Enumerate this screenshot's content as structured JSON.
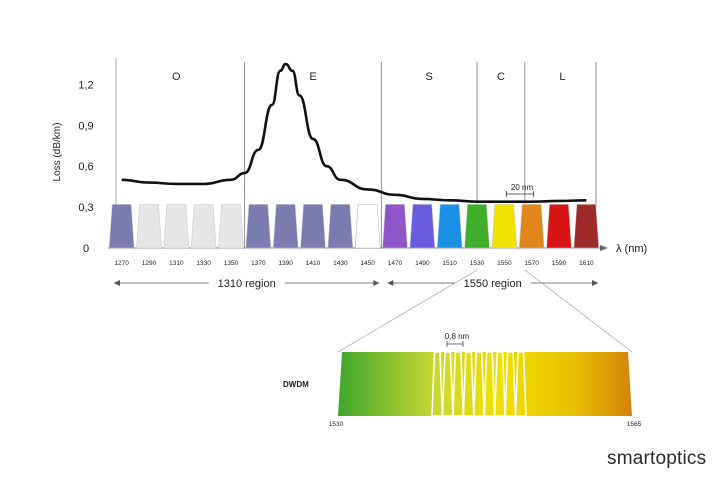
{
  "chart_data": {
    "type": "area",
    "ylabel": "Loss (dB/km)",
    "xlabel": "λ (nm)",
    "y_ticks": [
      "0",
      "0,3",
      "0,6",
      "0,9",
      "1,2"
    ],
    "ylim": [
      0,
      1.35
    ],
    "xlim": [
      1260,
      1620
    ],
    "bands": [
      {
        "name": "O",
        "start": 1260,
        "end": 1360
      },
      {
        "name": "E",
        "start": 1360,
        "end": 1460
      },
      {
        "name": "S",
        "start": 1460,
        "end": 1530
      },
      {
        "name": "C",
        "start": 1530,
        "end": 1565
      },
      {
        "name": "L",
        "start": 1565,
        "end": 1620
      }
    ],
    "cwdm_channels": [
      {
        "label": "1270",
        "center": 1270,
        "color": "#7b7bb0"
      },
      {
        "label": "1290",
        "center": 1290,
        "color": "#e6e6e6"
      },
      {
        "label": "1310",
        "center": 1310,
        "color": "#e6e6e6"
      },
      {
        "label": "1330",
        "center": 1330,
        "color": "#e6e6e6"
      },
      {
        "label": "1350",
        "center": 1350,
        "color": "#e6e6e6"
      },
      {
        "label": "1370",
        "center": 1370,
        "color": "#7b7bb0"
      },
      {
        "label": "1390",
        "center": 1390,
        "color": "#7b7bb0"
      },
      {
        "label": "1410",
        "center": 1410,
        "color": "#7b7bb0"
      },
      {
        "label": "1430",
        "center": 1430,
        "color": "#7b7bb0"
      },
      {
        "label": "1450",
        "center": 1450,
        "color": "#ffffff"
      },
      {
        "label": "1470",
        "center": 1470,
        "color": "#8e55c8"
      },
      {
        "label": "1490",
        "center": 1490,
        "color": "#6a5ce0"
      },
      {
        "label": "1510",
        "center": 1510,
        "color": "#1a8fe6"
      },
      {
        "label": "1530",
        "center": 1530,
        "color": "#3fae2a"
      },
      {
        "label": "1550",
        "center": 1550,
        "color": "#f2e000"
      },
      {
        "label": "1570",
        "center": 1570,
        "color": "#e0861a"
      },
      {
        "label": "1590",
        "center": 1590,
        "color": "#d81414"
      },
      {
        "label": "1610",
        "center": 1610,
        "color": "#9e2a2a"
      }
    ],
    "channel_loss_level": 0.32,
    "loss_curve": [
      [
        1270,
        0.5
      ],
      [
        1290,
        0.48
      ],
      [
        1310,
        0.47
      ],
      [
        1330,
        0.47
      ],
      [
        1350,
        0.5
      ],
      [
        1360,
        0.55
      ],
      [
        1370,
        0.72
      ],
      [
        1380,
        1.05
      ],
      [
        1386,
        1.3
      ],
      [
        1390,
        1.35
      ],
      [
        1395,
        1.3
      ],
      [
        1400,
        1.12
      ],
      [
        1410,
        0.8
      ],
      [
        1420,
        0.6
      ],
      [
        1430,
        0.5
      ],
      [
        1450,
        0.43
      ],
      [
        1470,
        0.39
      ],
      [
        1490,
        0.36
      ],
      [
        1510,
        0.35
      ],
      [
        1530,
        0.34
      ],
      [
        1550,
        0.34
      ],
      [
        1570,
        0.34
      ],
      [
        1590,
        0.345
      ],
      [
        1610,
        0.35
      ]
    ],
    "spacing_annotation": {
      "label": "20 nm",
      "from": 1550,
      "to": 1570
    },
    "regions": [
      {
        "label": "1310 region",
        "start": 1260,
        "end": 1460
      },
      {
        "label": "1550 region",
        "start": 1460,
        "end": 1620
      }
    ],
    "dwdm_inset": {
      "label": "DWDM",
      "start_label": "1530",
      "end_label": "1565",
      "spacing_label": "0,8 nm",
      "range": [
        1530,
        1565
      ],
      "channel_count": 9
    }
  },
  "brand": {
    "text": "smartoptics"
  }
}
